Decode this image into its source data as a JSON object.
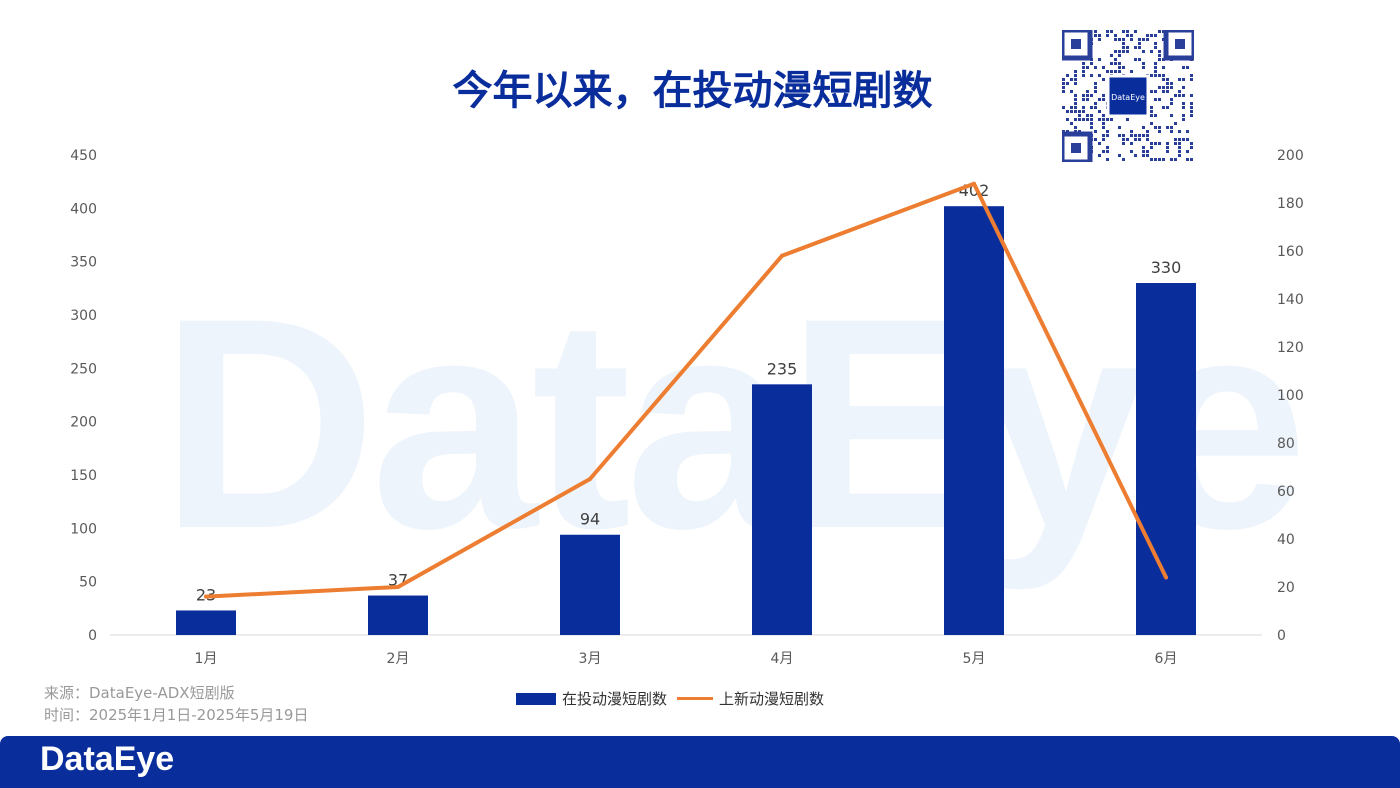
{
  "title": "今年以来，在投动漫短剧数",
  "source": {
    "line1": "来源：DataEye-ADX短剧版",
    "line2": "时间：2025年1月1日-2025年5月19日"
  },
  "footer": {
    "logo": "DataEye"
  },
  "watermark": "DataEye",
  "qr": {
    "label": "DataEye"
  },
  "chart_data": {
    "type": "bar+line",
    "title": "今年以来，在投动漫短剧数",
    "categories": [
      "1月",
      "2月",
      "3月",
      "4月",
      "5月",
      "6月"
    ],
    "series": [
      {
        "name": "在投动漫短剧数",
        "type": "bar",
        "axis": "left",
        "color": "#0a2d9c",
        "values": [
          23,
          37,
          94,
          235,
          402,
          330
        ],
        "data_labels": [
          "23",
          "37",
          "94",
          "235",
          "402",
          "330"
        ]
      },
      {
        "name": "上新动漫短剧数",
        "type": "line",
        "axis": "right",
        "color": "#ed7d31",
        "values": [
          16,
          20,
          65,
          158,
          188,
          24
        ]
      }
    ],
    "y_left": {
      "range": [
        0,
        450
      ],
      "ticks": [
        "0",
        "50",
        "100",
        "150",
        "200",
        "250",
        "300",
        "350",
        "400",
        "450"
      ]
    },
    "y_right": {
      "range": [
        0,
        200
      ],
      "ticks": [
        "0",
        "20",
        "40",
        "60",
        "80",
        "100",
        "120",
        "140",
        "160",
        "180",
        "200"
      ]
    },
    "grid": false,
    "legend": "bottom"
  }
}
